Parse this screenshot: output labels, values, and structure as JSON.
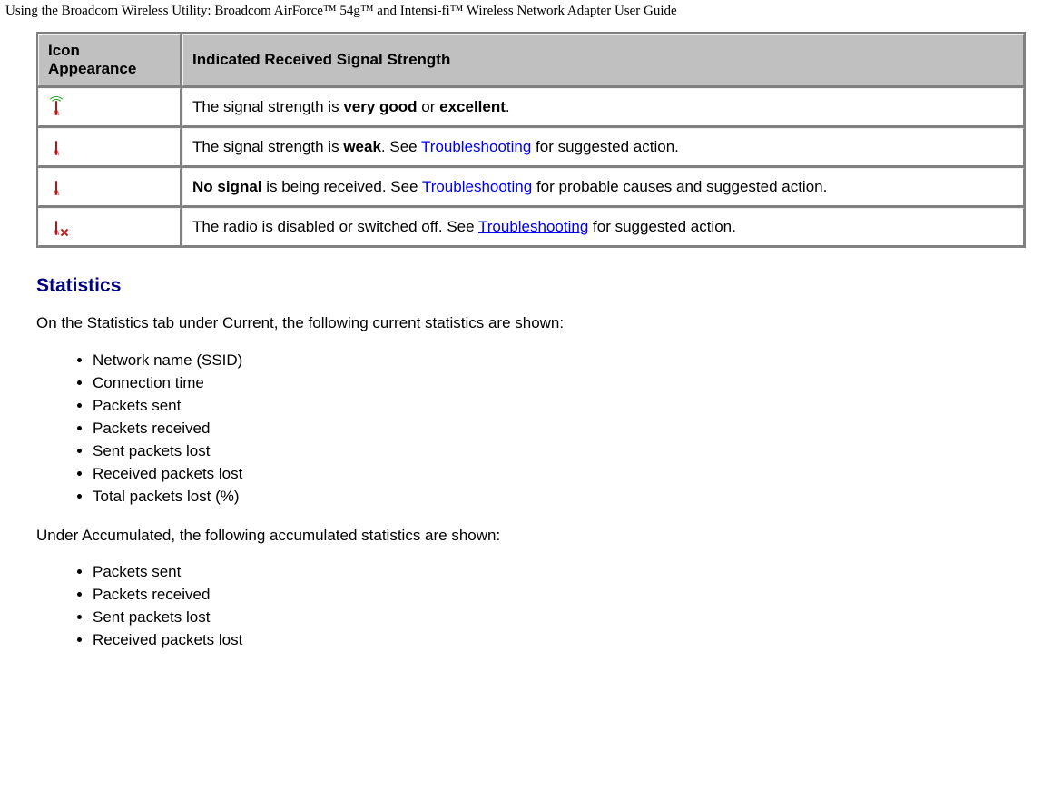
{
  "header": {
    "title": "Using the Broadcom Wireless Utility: Broadcom AirForce™ 54g™ and Intensi-fi™ Wireless Network Adapter User Guide"
  },
  "signal_table": {
    "columns": {
      "icon": "Icon Appearance",
      "desc": "Indicated Received Signal Strength"
    },
    "rows": [
      {
        "icon": "signal-excellent-icon",
        "segments": [
          {
            "text": "The signal strength is "
          },
          {
            "text": "very good",
            "bold": true
          },
          {
            "text": " or "
          },
          {
            "text": "excellent",
            "bold": true
          },
          {
            "text": "."
          }
        ]
      },
      {
        "icon": "signal-weak-icon",
        "segments": [
          {
            "text": "The signal strength is "
          },
          {
            "text": "weak",
            "bold": true
          },
          {
            "text": ". See "
          },
          {
            "text": "Troubleshooting",
            "link": true
          },
          {
            "text": " for suggested action."
          }
        ]
      },
      {
        "icon": "signal-none-icon",
        "segments": [
          {
            "text": "No signal",
            "bold": true
          },
          {
            "text": " is being received. See "
          },
          {
            "text": "Troubleshooting",
            "link": true
          },
          {
            "text": " for probable causes and suggested action."
          }
        ]
      },
      {
        "icon": "signal-disabled-icon",
        "segments": [
          {
            "text": "The radio is disabled or switched off. See "
          },
          {
            "text": "Troubleshooting",
            "link": true
          },
          {
            "text": " for suggested action."
          }
        ]
      }
    ]
  },
  "statistics": {
    "heading": "Statistics",
    "intro_current": "On the Statistics tab under Current, the following current statistics are shown:",
    "current_items": [
      "Network name (SSID)",
      "Connection time",
      "Packets sent",
      "Packets received",
      "Sent packets lost",
      "Received packets lost",
      "Total packets lost (%)"
    ],
    "intro_accumulated": "Under Accumulated, the following accumulated statistics are shown:",
    "accumulated_items": [
      "Packets sent",
      "Packets received",
      "Sent packets lost",
      "Received packets lost"
    ]
  },
  "colors": {
    "heading": "#000080",
    "link": "#0000ee",
    "table_header_bg": "#c0c0c0",
    "table_border_dark": "#808080",
    "table_border_light": "#f0f0f0",
    "body_bg": "#ffffff",
    "text": "#000000"
  }
}
